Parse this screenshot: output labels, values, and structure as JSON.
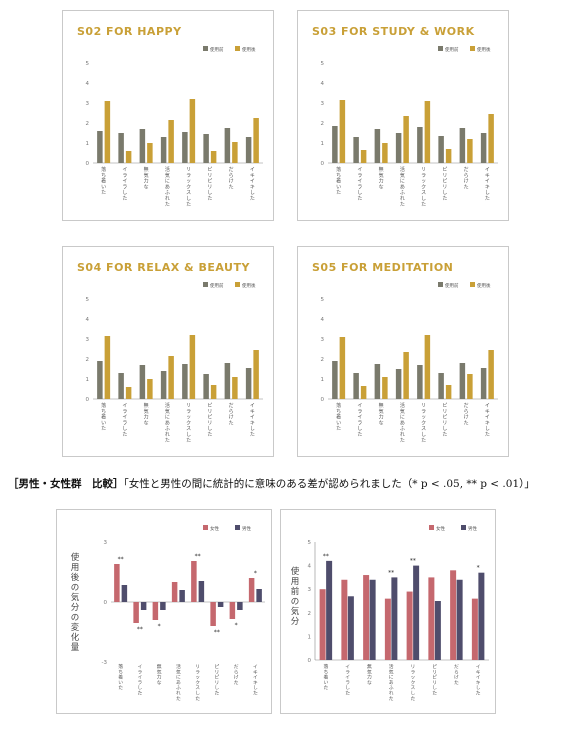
{
  "colors": {
    "before": "#7a7a6c",
    "after": "#c9a037",
    "female": "#c5686e",
    "male": "#4f4d6c",
    "title": "#c9a037"
  },
  "categories": [
    "落ち着いた",
    "イライラした",
    "無気力な",
    "活気にあふれた",
    "リラックスした",
    "ピリピリした",
    "だらけた",
    "イキイキした"
  ],
  "caption": {
    "bold": "［男性・女性群　比較］",
    "text": "「女性と男性の間に統計的に意味のある差が認められました（* p < .05, ** p < .01）」"
  },
  "chart_data": [
    {
      "type": "bar",
      "title": "S02 FOR HAPPY",
      "legend": [
        "使用前",
        "使用後"
      ],
      "ylim": [
        0,
        5
      ],
      "yticks": [
        "0",
        "1",
        "2",
        "3",
        "4",
        "5"
      ],
      "categories": [
        "落ち着いた",
        "イライラした",
        "無気力な",
        "活気にあふれた",
        "リラックスした",
        "ピリピリした",
        "だらけた",
        "イキイキした"
      ],
      "series": [
        {
          "name": "使用前",
          "values": [
            1.6,
            1.5,
            1.7,
            1.3,
            1.55,
            1.45,
            1.75,
            1.3
          ]
        },
        {
          "name": "使用後",
          "values": [
            3.1,
            0.6,
            1.0,
            2.15,
            3.2,
            0.6,
            1.05,
            2.25
          ]
        }
      ]
    },
    {
      "type": "bar",
      "title": "S03 FOR STUDY & WORK",
      "legend": [
        "使用前",
        "使用後"
      ],
      "ylim": [
        0,
        5
      ],
      "yticks": [
        "0",
        "1",
        "2",
        "3",
        "4",
        "5"
      ],
      "categories": [
        "落ち着いた",
        "イライラした",
        "無気力な",
        "活気にあふれた",
        "リラックスした",
        "ピリピリした",
        "だらけた",
        "イキイキした"
      ],
      "series": [
        {
          "name": "使用前",
          "values": [
            1.85,
            1.3,
            1.7,
            1.5,
            1.8,
            1.35,
            1.75,
            1.5
          ]
        },
        {
          "name": "使用後",
          "values": [
            3.15,
            0.65,
            1.0,
            2.35,
            3.1,
            0.7,
            1.2,
            2.45
          ]
        }
      ]
    },
    {
      "type": "bar",
      "title": "S04 FOR RELAX & BEAUTY",
      "legend": [
        "使用前",
        "使用後"
      ],
      "ylim": [
        0,
        5
      ],
      "yticks": [
        "0",
        "1",
        "2",
        "3",
        "4",
        "5"
      ],
      "categories": [
        "落ち着いた",
        "イライラした",
        "無気力な",
        "活気にあふれた",
        "リラックスした",
        "ピリピリした",
        "だらけた",
        "イキイキした"
      ],
      "series": [
        {
          "name": "使用前",
          "values": [
            1.9,
            1.3,
            1.7,
            1.4,
            1.75,
            1.25,
            1.8,
            1.55
          ]
        },
        {
          "name": "使用後",
          "values": [
            3.15,
            0.6,
            1.0,
            2.15,
            3.2,
            0.7,
            1.1,
            2.45
          ]
        }
      ]
    },
    {
      "type": "bar",
      "title": "S05 FOR MEDITATION",
      "legend": [
        "使用前",
        "使用後"
      ],
      "ylim": [
        0,
        5
      ],
      "yticks": [
        "0",
        "1",
        "2",
        "3",
        "4",
        "5"
      ],
      "categories": [
        "落ち着いた",
        "イライラした",
        "無気力な",
        "活気にあふれた",
        "リラックスした",
        "ピリピリした",
        "だらけた",
        "イキイキした"
      ],
      "series": [
        {
          "name": "使用前",
          "values": [
            1.9,
            1.3,
            1.75,
            1.5,
            1.7,
            1.3,
            1.8,
            1.55
          ]
        },
        {
          "name": "使用後",
          "values": [
            3.1,
            0.65,
            1.1,
            2.35,
            3.2,
            0.7,
            1.25,
            2.45
          ]
        }
      ]
    },
    {
      "type": "bar",
      "title": "",
      "ylabel": "使用後の気分の変化量",
      "legend": [
        "女性",
        "男性"
      ],
      "ylim": [
        -3,
        3
      ],
      "yticks": [
        "-3",
        "0",
        "3"
      ],
      "categories": [
        "落ち着いた",
        "イライラした",
        "無気力な",
        "活気にあふれた",
        "リラックスした",
        "ピリピリした",
        "だらけた",
        "イキイキした"
      ],
      "series": [
        {
          "name": "女性",
          "values": [
            1.9,
            -1.05,
            -0.9,
            1.0,
            2.05,
            -1.2,
            -0.85,
            1.2
          ]
        },
        {
          "name": "男性",
          "values": [
            0.85,
            -0.4,
            -0.4,
            0.6,
            1.05,
            -0.25,
            -0.4,
            0.65
          ]
        }
      ],
      "annotations": [
        "**",
        "**",
        "*",
        "",
        "**",
        "**",
        "*",
        "*"
      ]
    },
    {
      "type": "bar",
      "title": "",
      "ylabel": "使用前の気分",
      "legend": [
        "女性",
        "男性"
      ],
      "ylim": [
        0,
        5
      ],
      "yticks": [
        "0",
        "1",
        "2",
        "3",
        "4",
        "5"
      ],
      "categories": [
        "落ち着いた",
        "イライラした",
        "無気力な",
        "活気にあふれた",
        "リラックスした",
        "ピリピリした",
        "だらけた",
        "イキイキした"
      ],
      "series": [
        {
          "name": "女性",
          "values": [
            3.0,
            3.4,
            3.6,
            2.6,
            2.9,
            3.5,
            3.8,
            2.6
          ]
        },
        {
          "name": "男性",
          "values": [
            4.2,
            2.7,
            3.4,
            3.5,
            4.0,
            2.5,
            3.4,
            3.7
          ]
        }
      ],
      "annotations": [
        "**",
        "",
        "",
        "**",
        "**",
        "",
        "",
        "*"
      ]
    }
  ]
}
